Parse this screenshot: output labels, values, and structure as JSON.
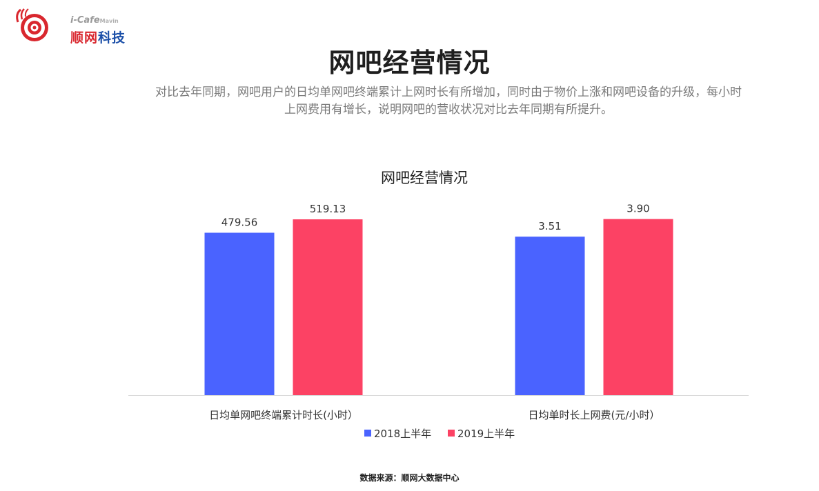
{
  "logo": {
    "top_text": "i-Cafe",
    "top_suffix": "Mavin",
    "brand_red": "顺网",
    "brand_blue": "科技"
  },
  "header": {
    "title": "网吧经营情况",
    "description_line1": "对比去年同期，网吧用户的日均单网吧终端累计上网时长有所增加，同时由于物价上涨和网吧设备的升级，每小时",
    "description_line2": "上网费用有增长，说明网吧的营收状况对比去年同期有所提升。"
  },
  "footer": {
    "source": "数据来源：顺网大数据中心"
  },
  "colors": {
    "series_2018": "#4a63ff",
    "series_2019": "#fc4264",
    "axis": "#d9d9d9"
  },
  "chart_data": {
    "type": "bar",
    "title": "网吧经营情况",
    "categories": [
      "日均单网吧终端累计时长(小时）",
      "日均单时长上网费(元/小时）"
    ],
    "series": [
      {
        "name": "2018上半年",
        "values": [
          479.56,
          3.51
        ],
        "labels": [
          "479.56",
          "3.51"
        ]
      },
      {
        "name": "2019上半年",
        "values": [
          519.13,
          3.9
        ],
        "labels": [
          "519.13",
          "3.90"
        ]
      }
    ],
    "category_ranges": [
      [
        0,
        560
      ],
      [
        0,
        4.2
      ]
    ],
    "legend_position": "bottom",
    "grid": false
  }
}
